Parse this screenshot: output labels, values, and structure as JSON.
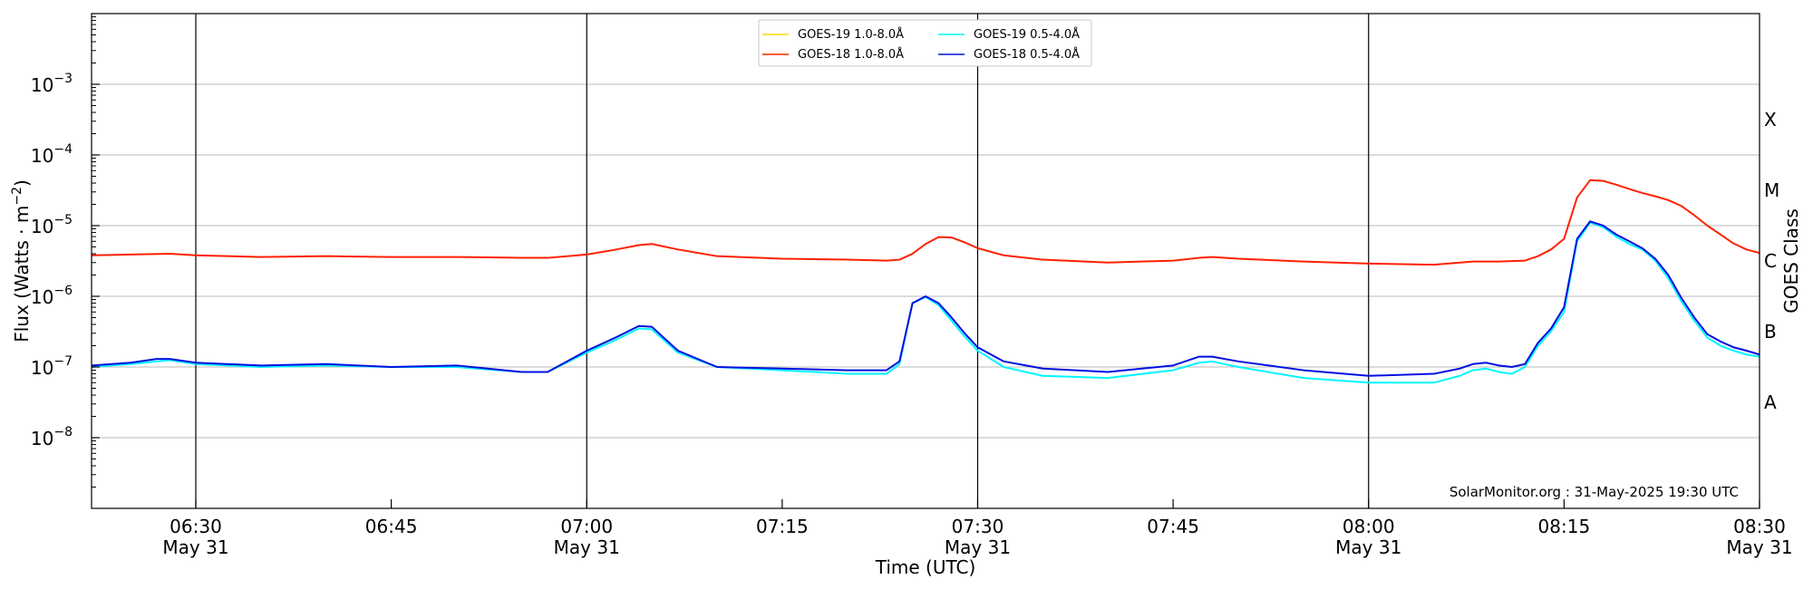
{
  "chart_data": {
    "type": "line",
    "title": "",
    "xlabel": "Time (UTC)",
    "ylabel": "Flux (Watts · m",
    "ylabel_sup": "−2",
    "ylabel_end": ")",
    "right_label": "GOES Class",
    "credit": "SolarMonitor.org : 31-May-2025 19:30 UTC",
    "xlim": [
      "06:22",
      "08:30"
    ],
    "ylog": true,
    "ylim_exp": [
      -9,
      -2
    ],
    "grid": "horizontal at decades",
    "legend_position": "top-center",
    "x_ticks": [
      {
        "time": "06:30",
        "label": "06:30",
        "sub": "May 31"
      },
      {
        "time": "06:45",
        "label": "06:45",
        "sub": ""
      },
      {
        "time": "07:00",
        "label": "07:00",
        "sub": "May 31"
      },
      {
        "time": "07:15",
        "label": "07:15",
        "sub": ""
      },
      {
        "time": "07:30",
        "label": "07:30",
        "sub": "May 31"
      },
      {
        "time": "07:45",
        "label": "07:45",
        "sub": ""
      },
      {
        "time": "08:00",
        "label": "08:00",
        "sub": "May 31"
      },
      {
        "time": "08:15",
        "label": "08:15",
        "sub": ""
      },
      {
        "time": "08:30",
        "label": "08:30",
        "sub": "May 31"
      }
    ],
    "day_lines": [
      "06:30",
      "07:00",
      "07:30",
      "08:00"
    ],
    "y_ticks": [
      {
        "exp": -8,
        "base": "10",
        "sup": "−8"
      },
      {
        "exp": -7,
        "base": "10",
        "sup": "−7"
      },
      {
        "exp": -6,
        "base": "10",
        "sup": "−6"
      },
      {
        "exp": -5,
        "base": "10",
        "sup": "−5"
      },
      {
        "exp": -4,
        "base": "10",
        "sup": "−4"
      },
      {
        "exp": -3,
        "base": "10",
        "sup": "−3"
      }
    ],
    "class_labels": [
      {
        "label": "A",
        "exp": -7.5
      },
      {
        "label": "B",
        "exp": -6.5
      },
      {
        "label": "C",
        "exp": -5.5
      },
      {
        "label": "M",
        "exp": -4.5
      },
      {
        "label": "X",
        "exp": -3.5
      }
    ],
    "series": [
      {
        "name": "GOES-19 1.0-8.0Å",
        "color": "#ffd700",
        "values": []
      },
      {
        "name": "GOES-18 1.0-8.0Å",
        "color": "#ff2000",
        "x": [
          "06:22",
          "06:25",
          "06:28",
          "06:30",
          "06:35",
          "06:40",
          "06:45",
          "06:50",
          "06:55",
          "06:57",
          "07:00",
          "07:02",
          "07:04",
          "07:05",
          "07:07",
          "07:10",
          "07:15",
          "07:20",
          "07:23",
          "07:24",
          "07:25",
          "07:26",
          "07:27",
          "07:28",
          "07:29",
          "07:30",
          "07:32",
          "07:35",
          "07:40",
          "07:45",
          "07:47",
          "07:48",
          "07:50",
          "07:55",
          "08:00",
          "08:05",
          "08:08",
          "08:10",
          "08:12",
          "08:13",
          "08:14",
          "08:15",
          "08:16",
          "08:17",
          "08:18",
          "08:19",
          "08:20",
          "08:21",
          "08:22",
          "08:23",
          "08:24",
          "08:25",
          "08:26",
          "08:27",
          "08:28",
          "08:29",
          "08:30"
        ],
        "values": [
          3.8e-06,
          3.9e-06,
          4e-06,
          3.8e-06,
          3.6e-06,
          3.7e-06,
          3.6e-06,
          3.6e-06,
          3.5e-06,
          3.5e-06,
          3.9e-06,
          4.5e-06,
          5.3e-06,
          5.5e-06,
          4.6e-06,
          3.7e-06,
          3.4e-06,
          3.3e-06,
          3.2e-06,
          3.3e-06,
          4e-06,
          5.5e-06,
          6.9e-06,
          6.8e-06,
          5.8e-06,
          4.8e-06,
          3.8e-06,
          3.3e-06,
          3e-06,
          3.2e-06,
          3.5e-06,
          3.6e-06,
          3.4e-06,
          3.1e-06,
          2.9e-06,
          2.8e-06,
          3.1e-06,
          3.1e-06,
          3.2e-06,
          3.7e-06,
          4.6e-06,
          6.5e-06,
          2.5e-05,
          4.4e-05,
          4.3e-05,
          3.8e-05,
          3.3e-05,
          2.9e-05,
          2.6e-05,
          2.3e-05,
          1.9e-05,
          1.4e-05,
          1e-05,
          7.5e-06,
          5.6e-06,
          4.6e-06,
          4.1e-06
        ]
      },
      {
        "name": "GOES-19 0.5-4.0Å",
        "color": "#00f5ff",
        "x": [
          "06:22",
          "06:25",
          "06:27",
          "06:28",
          "06:30",
          "06:35",
          "06:40",
          "06:45",
          "06:50",
          "06:55",
          "06:57",
          "07:00",
          "07:02",
          "07:04",
          "07:05",
          "07:07",
          "07:10",
          "07:15",
          "07:20",
          "07:23",
          "07:24",
          "07:25",
          "07:26",
          "07:27",
          "07:28",
          "07:29",
          "07:30",
          "07:32",
          "07:35",
          "07:40",
          "07:45",
          "07:47",
          "07:48",
          "07:50",
          "07:55",
          "08:00",
          "08:05",
          "08:07",
          "08:08",
          "08:09",
          "08:10",
          "08:11",
          "08:12",
          "08:13",
          "08:14",
          "08:15",
          "08:16",
          "08:17",
          "08:18",
          "08:19",
          "08:20",
          "08:21",
          "08:22",
          "08:23",
          "08:24",
          "08:25",
          "08:26",
          "08:27",
          "08:28",
          "08:29",
          "08:30"
        ],
        "values": [
          1e-07,
          1.1e-07,
          1.2e-07,
          1.25e-07,
          1.1e-07,
          1e-07,
          1.05e-07,
          1e-07,
          1e-07,
          8.5e-08,
          8.5e-08,
          1.6e-07,
          2.3e-07,
          3.5e-07,
          3.4e-07,
          1.6e-07,
          1e-07,
          9e-08,
          8e-08,
          8e-08,
          1.1e-07,
          8e-07,
          9.8e-07,
          7.5e-07,
          4.5e-07,
          2.7e-07,
          1.7e-07,
          1e-07,
          7.5e-08,
          7e-08,
          9e-08,
          1.15e-07,
          1.2e-07,
          1e-07,
          7e-08,
          6e-08,
          6e-08,
          7.5e-08,
          9e-08,
          9.5e-08,
          8.5e-08,
          8e-08,
          1e-07,
          2e-07,
          3.2e-07,
          6e-07,
          6e-06,
          1.1e-05,
          9.5e-06,
          7e-06,
          5.5e-06,
          4.6e-06,
          3.2e-06,
          1.8e-06,
          8.5e-07,
          4.5e-07,
          2.6e-07,
          2e-07,
          1.7e-07,
          1.5e-07,
          1.4e-07
        ]
      },
      {
        "name": "GOES-18 0.5-4.0Å",
        "color": "#0010e0",
        "x": [
          "06:22",
          "06:25",
          "06:27",
          "06:28",
          "06:30",
          "06:35",
          "06:40",
          "06:45",
          "06:50",
          "06:55",
          "06:57",
          "07:00",
          "07:02",
          "07:04",
          "07:05",
          "07:07",
          "07:10",
          "07:15",
          "07:20",
          "07:23",
          "07:24",
          "07:25",
          "07:26",
          "07:27",
          "07:28",
          "07:29",
          "07:30",
          "07:32",
          "07:35",
          "07:40",
          "07:45",
          "07:47",
          "07:48",
          "07:50",
          "07:55",
          "08:00",
          "08:05",
          "08:07",
          "08:08",
          "08:09",
          "08:10",
          "08:11",
          "08:12",
          "08:13",
          "08:14",
          "08:15",
          "08:16",
          "08:17",
          "08:18",
          "08:19",
          "08:20",
          "08:21",
          "08:22",
          "08:23",
          "08:24",
          "08:25",
          "08:26",
          "08:27",
          "08:28",
          "08:29",
          "08:30"
        ],
        "values": [
          1.05e-07,
          1.15e-07,
          1.3e-07,
          1.3e-07,
          1.15e-07,
          1.05e-07,
          1.1e-07,
          1e-07,
          1.05e-07,
          8.5e-08,
          8.5e-08,
          1.7e-07,
          2.5e-07,
          3.8e-07,
          3.7e-07,
          1.7e-07,
          1e-07,
          9.5e-08,
          9e-08,
          9e-08,
          1.2e-07,
          8e-07,
          1e-06,
          8e-07,
          5e-07,
          3e-07,
          1.9e-07,
          1.2e-07,
          9.5e-08,
          8.5e-08,
          1.05e-07,
          1.4e-07,
          1.4e-07,
          1.2e-07,
          9e-08,
          7.5e-08,
          8e-08,
          9.5e-08,
          1.1e-07,
          1.15e-07,
          1.05e-07,
          1e-07,
          1.1e-07,
          2.2e-07,
          3.5e-07,
          7e-07,
          6.5e-06,
          1.15e-05,
          1e-05,
          7.5e-06,
          6e-06,
          4.8e-06,
          3.4e-06,
          2e-06,
          9.5e-07,
          5e-07,
          2.9e-07,
          2.3e-07,
          1.9e-07,
          1.7e-07,
          1.5e-07
        ]
      }
    ]
  }
}
